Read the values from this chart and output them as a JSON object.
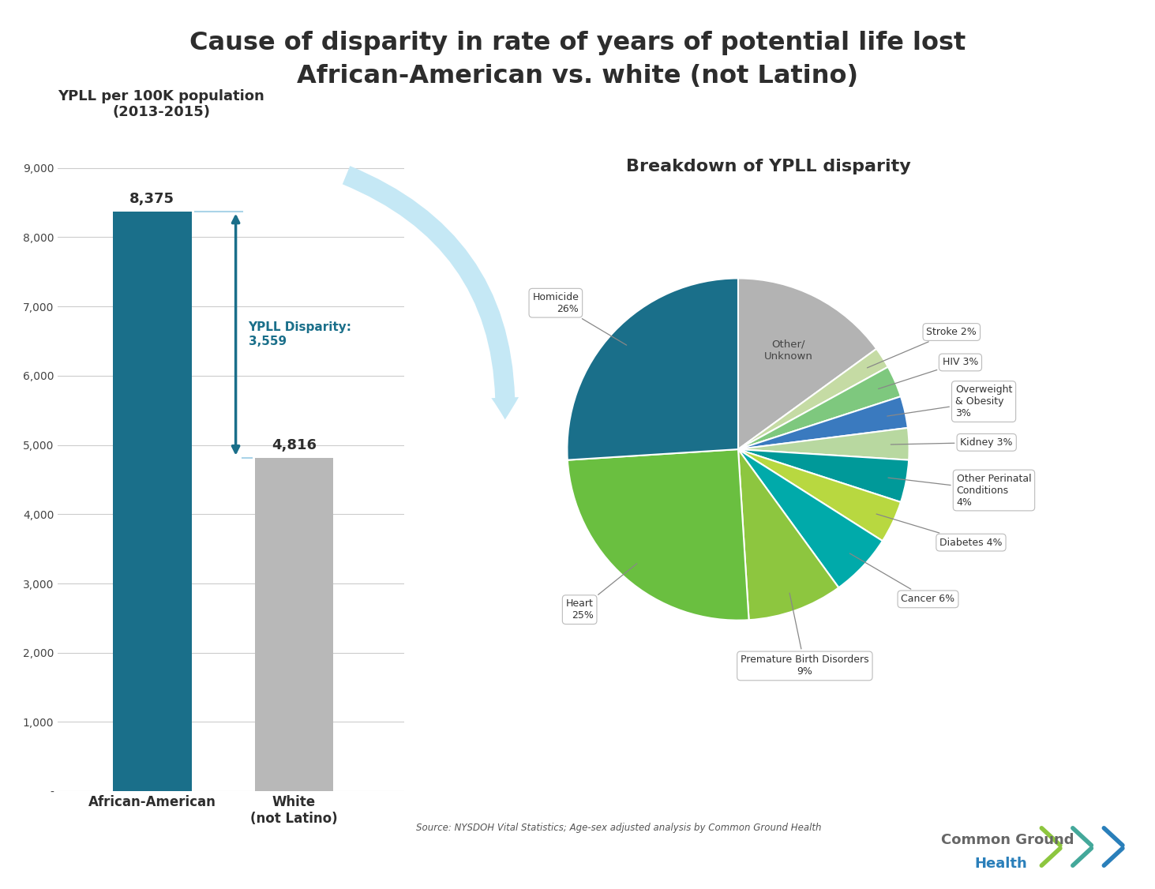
{
  "title_line1": "Cause of disparity in rate of years of potential life lost",
  "title_line2": "African-American vs. white (not Latino)",
  "bar_subtitle": "YPLL per 100K population\n(2013-2015)",
  "pie_subtitle": "Breakdown of YPLL disparity",
  "source_text": "Source: NYSDOH Vital Statistics; Age-sex adjusted analysis by Common Ground Health",
  "bar_values": [
    8375,
    4816
  ],
  "bar_labels": [
    "African-American",
    "White\n(not Latino)"
  ],
  "bar_colors": [
    "#1a6f8a",
    "#b8b8b8"
  ],
  "disparity_label": "YPLL Disparity:\n3,559",
  "ytick_labels": [
    "9,000",
    "8,000",
    "7,000",
    "6,000",
    "5,000",
    "4,000",
    "3,000",
    "2,000",
    "1,000",
    "-"
  ],
  "ytick_values": [
    9000,
    8000,
    7000,
    6000,
    5000,
    4000,
    3000,
    2000,
    1000,
    0
  ],
  "pie_values": [
    15,
    2,
    3,
    3,
    3,
    4,
    4,
    6,
    9,
    25,
    26
  ],
  "pie_colors": [
    "#b3b3b3",
    "#c5dba4",
    "#7ec87e",
    "#3a7abf",
    "#b8d8a0",
    "#009999",
    "#b8d840",
    "#00aaaa",
    "#8dc63f",
    "#6abf40",
    "#1a6f8a"
  ],
  "pie_inner_label": "Other/\nUnknown",
  "background_color": "#ffffff"
}
